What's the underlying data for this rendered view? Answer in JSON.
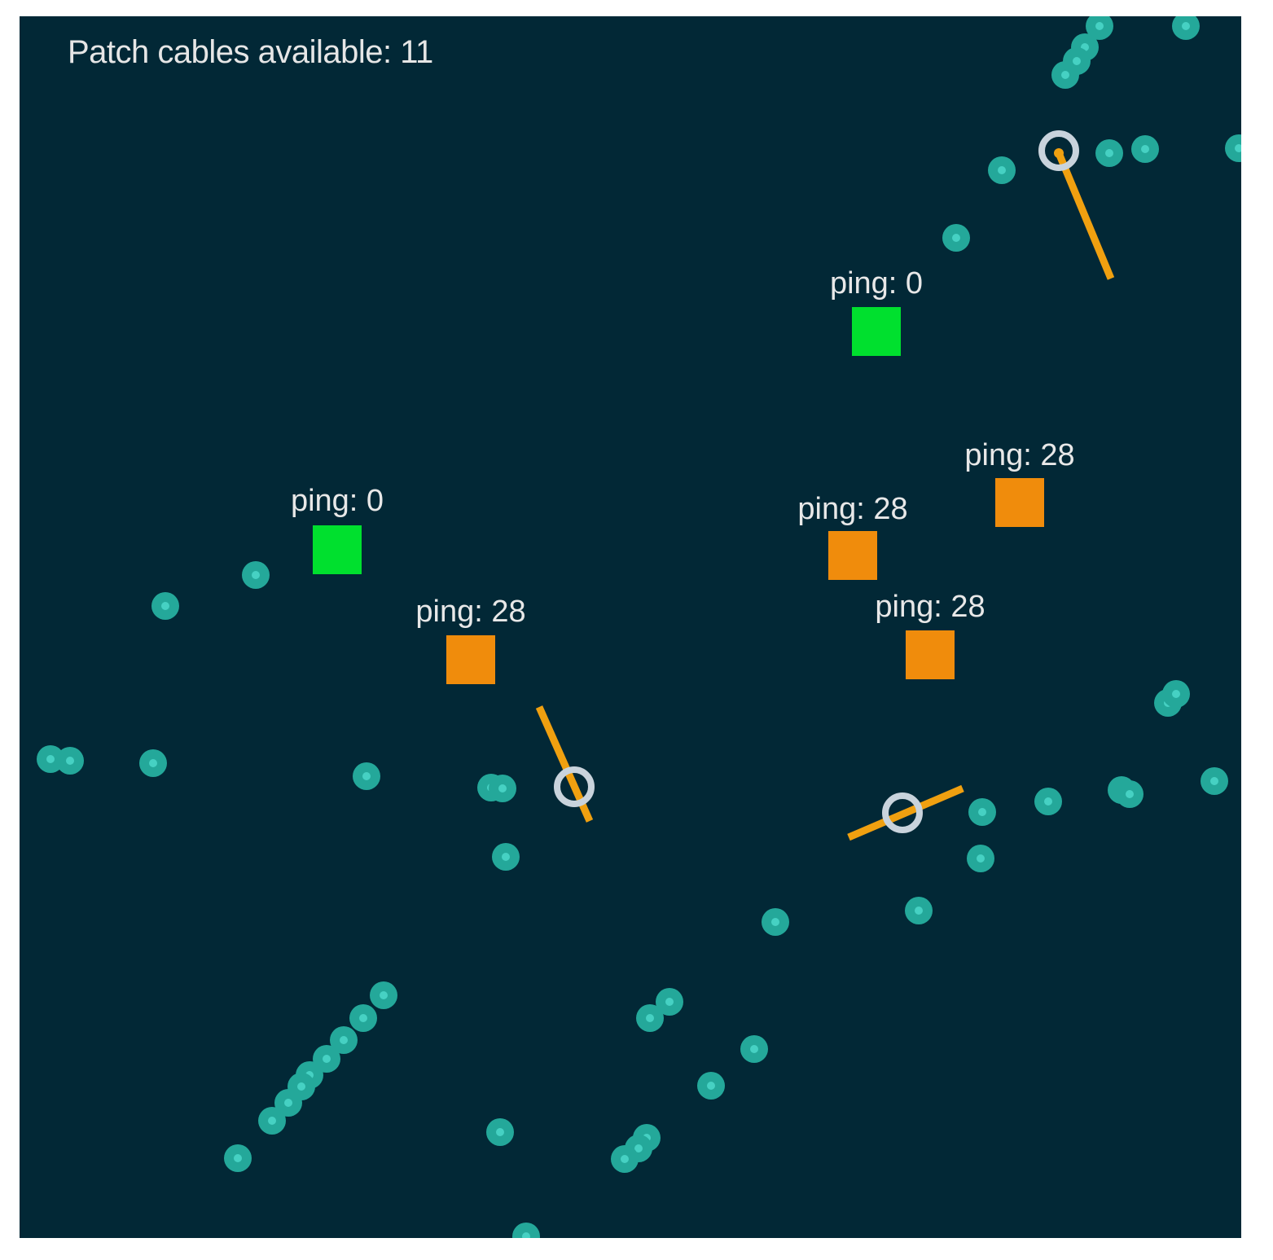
{
  "hud": {
    "patch_cables_label": "Patch cables available: 11"
  },
  "colors": {
    "background": "#022836",
    "packet": "#24a89a",
    "packet_core": "#46d1c3",
    "server_online": "#00e02e",
    "server_lagging": "#f08c0c",
    "cable": "#f0a010",
    "connector_ring": "#c9d3dc",
    "label_text": "#e8e8e8"
  },
  "servers": [
    {
      "id": "server-a",
      "status": "online",
      "ping_label": "ping: 0"
    },
    {
      "id": "server-b",
      "status": "online",
      "ping_label": "ping: 0"
    },
    {
      "id": "server-c",
      "status": "lagging",
      "ping_label": "ping: 28"
    },
    {
      "id": "server-d",
      "status": "lagging",
      "ping_label": "ping: 28"
    },
    {
      "id": "server-e",
      "status": "lagging",
      "ping_label": "ping: 28"
    },
    {
      "id": "server-f",
      "status": "lagging",
      "ping_label": "ping: 28"
    }
  ]
}
